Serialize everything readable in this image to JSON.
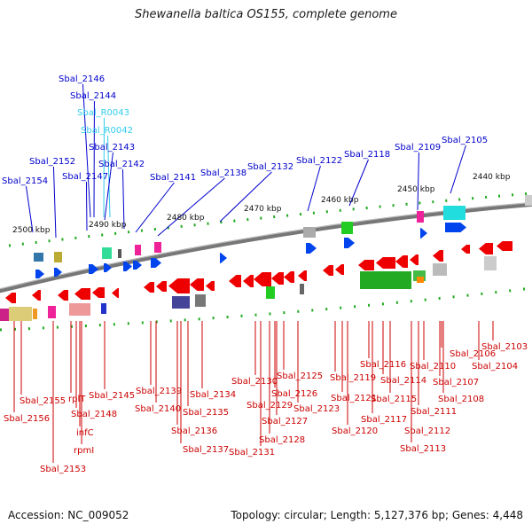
{
  "title": "Shewanella baltica OS155, complete genome",
  "footer": {
    "accession": "Accession: NC_009052",
    "summary": "Topology: circular; Length: 5,127,376 bp; Genes: 4,448"
  },
  "colors": {
    "forward_label": "#0000cc",
    "rna_label": "#33ccee",
    "reverse_label": "#cc0000",
    "backbone": "#777777",
    "tick_dash": "#22aa22"
  },
  "scale_labels": [
    "2500 kbp",
    "2490 kbp",
    "2480 kbp",
    "2470 kbp",
    "2460 kbp",
    "2450 kbp",
    "2440 kbp"
  ],
  "forward_labels": [
    "Sbal_2146",
    "Sbal_2144",
    "Sbal_R0043",
    "Sbal_R0042",
    "Sbal_2143",
    "Sbal_2152",
    "Sbal_2142",
    "Sbal_2154",
    "Sbal_2147",
    "Sbal_2141",
    "Sbal_2138",
    "Sbal_2132",
    "Sbal_2122",
    "Sbal_2118",
    "Sbal_2109",
    "Sbal_2105"
  ],
  "reverse_labels": [
    "Sbal_2155",
    "rplT",
    "Sbal_2145",
    "Sbal_2139",
    "Sbal_2134",
    "Sbal_2130",
    "Sbal_2125",
    "Sbal_2116",
    "Sbal_2110",
    "Sbal_2106",
    "Sbal_2103",
    "Sbal_2156",
    "Sbal_2148",
    "Sbal_2140",
    "Sbal_2126",
    "Sbal_2121",
    "Sbal_2115",
    "Sbal_2114",
    "Sbal_2107",
    "Sbal_2104",
    "infC",
    "Sbal_2135",
    "Sbal_2129",
    "Sbal_2123",
    "Sbal_2119",
    "Sbal_2108",
    "Sbal_2127",
    "Sbal_2117",
    "Sbal_2111",
    "rpmI",
    "Sbal_2136",
    "Sbal_2128",
    "Sbal_2120",
    "Sbal_2112",
    "Sbal_2137",
    "Sbal_2131",
    "Sbal_2113",
    "Sbal_2153"
  ]
}
